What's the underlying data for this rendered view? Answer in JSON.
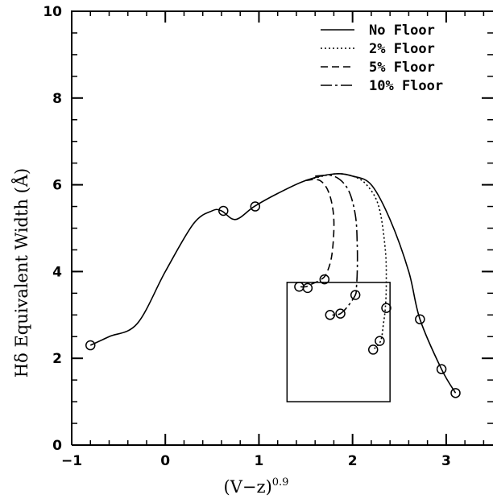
{
  "chart_data": {
    "type": "line",
    "xlabel": "(V−z)",
    "xlabel_exponent": "0.9",
    "ylabel": "Hδ Equivalent Width (Å)",
    "xlim": [
      -1,
      3.5
    ],
    "ylim": [
      0,
      10
    ],
    "x_ticks": [
      -1,
      0,
      1,
      2,
      3
    ],
    "x_tick_labels": [
      "−1",
      "0",
      "1",
      "2",
      "3"
    ],
    "y_ticks": [
      0,
      2,
      4,
      6,
      8,
      10
    ],
    "y_tick_labels": [
      "0",
      "2",
      "4",
      "6",
      "8",
      "10"
    ],
    "legend_position": "top-right",
    "series": [
      {
        "name": "No Floor",
        "dash": "solid",
        "x": [
          -0.8,
          -0.6,
          -0.3,
          0.0,
          0.3,
          0.5,
          0.6,
          0.75,
          0.95,
          1.2,
          1.5,
          1.8,
          2.0,
          2.2,
          2.4,
          2.6,
          2.72,
          2.95,
          3.1
        ],
        "y": [
          2.3,
          2.5,
          2.8,
          4.0,
          5.1,
          5.4,
          5.4,
          5.2,
          5.5,
          5.8,
          6.1,
          6.25,
          6.2,
          6.0,
          5.2,
          4.0,
          2.9,
          1.75,
          1.2
        ],
        "markers": [
          [
            -0.8,
            2.3
          ],
          [
            0.62,
            5.4
          ],
          [
            0.96,
            5.5
          ],
          [
            2.72,
            2.9
          ],
          [
            2.95,
            1.75
          ],
          [
            3.1,
            1.2
          ]
        ]
      },
      {
        "name": "2% Floor",
        "dash": "dotted",
        "x": [
          1.5,
          1.8,
          2.0,
          2.15,
          2.28,
          2.35,
          2.36,
          2.35,
          2.33,
          2.3,
          2.22
        ],
        "y": [
          6.1,
          6.25,
          6.2,
          6.0,
          5.5,
          4.5,
          3.7,
          3.16,
          2.8,
          2.4,
          2.2
        ],
        "markers": [
          [
            2.36,
            3.16
          ],
          [
            2.29,
            2.4
          ],
          [
            2.22,
            2.2
          ]
        ]
      },
      {
        "name": "5% Floor",
        "dash": "dashed",
        "x": [
          1.5,
          1.65,
          1.75,
          1.8,
          1.78,
          1.72,
          1.65,
          1.55,
          1.5,
          1.43
        ],
        "y": [
          6.1,
          6.1,
          5.8,
          5.2,
          4.4,
          3.95,
          3.8,
          3.7,
          3.65,
          3.65
        ],
        "markers": [
          [
            1.7,
            3.82
          ],
          [
            1.52,
            3.62
          ],
          [
            1.43,
            3.65
          ]
        ]
      },
      {
        "name": "10% Floor",
        "dash": "dash-dot",
        "x": [
          1.6,
          1.8,
          1.95,
          2.03,
          2.05,
          2.05,
          2.04,
          2.03,
          1.95,
          1.87,
          1.8,
          1.76
        ],
        "y": [
          6.2,
          6.2,
          5.9,
          5.3,
          4.6,
          4.0,
          3.6,
          3.46,
          3.2,
          3.03,
          3.0,
          3.0
        ],
        "markers": [
          [
            2.03,
            3.46
          ],
          [
            1.87,
            3.03
          ],
          [
            1.76,
            3.0
          ]
        ]
      }
    ],
    "box": {
      "x0": 1.3,
      "x1": 2.4,
      "y0": 1.0,
      "y1": 3.75
    }
  }
}
